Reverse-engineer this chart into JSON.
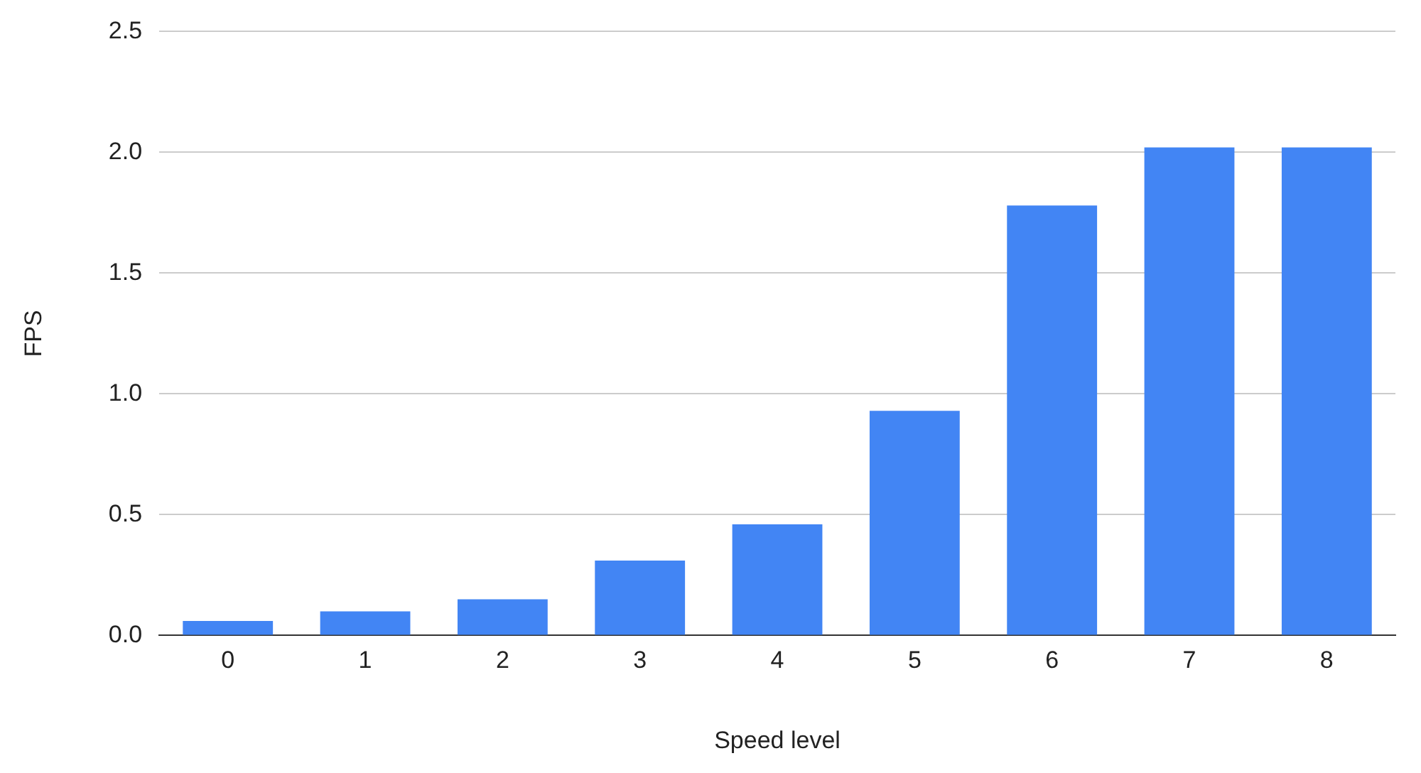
{
  "chart_data": {
    "type": "bar",
    "xlabel": "Speed level",
    "ylabel": "FPS",
    "categories": [
      "0",
      "1",
      "2",
      "3",
      "4",
      "5",
      "6",
      "7",
      "8"
    ],
    "values": [
      0.06,
      0.1,
      0.15,
      0.31,
      0.46,
      0.93,
      1.78,
      2.02,
      2.02
    ],
    "color": "#4285f4",
    "ylim": [
      0,
      2.5
    ],
    "yticks": [
      {
        "value": 0,
        "label": "0.0"
      },
      {
        "value": 0.5,
        "label": "0.5"
      },
      {
        "value": 1,
        "label": "1.0"
      },
      {
        "value": 1.5,
        "label": "1.5"
      },
      {
        "value": 2,
        "label": "2.0"
      },
      {
        "value": 2.5,
        "label": "2.5"
      }
    ],
    "grid": "y",
    "legend": false
  }
}
